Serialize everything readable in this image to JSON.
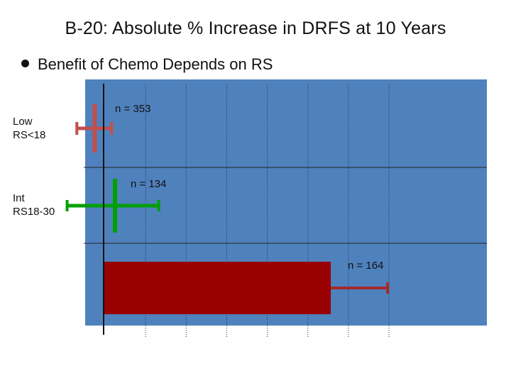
{
  "slide": {
    "title": "B-20: Absolute % Increase in DRFS at 10 Years",
    "bullet": "Benefit of Chemo Depends on RS"
  },
  "chart_data": {
    "type": "bar",
    "orientation": "horizontal",
    "title": "",
    "categories": [
      {
        "line1": "Low",
        "line2": "RS<18"
      },
      {
        "line1": "Int",
        "line2": "RS18-30"
      },
      {
        "line1": "",
        "line2": ""
      }
    ],
    "values": [
      -1.1,
      1.4,
      28.0
    ],
    "ci_low": [
      -3.3,
      -4.5,
      28.0
    ],
    "ci_high": [
      1.0,
      6.8,
      35.0
    ],
    "annotations": [
      "n = 353",
      "n = 134",
      "n = 164"
    ],
    "xlim": [
      -5,
      35
    ],
    "grid": "vertical dotted",
    "colors": {
      "plot_background": "#4f81bd",
      "low": "#c0504d",
      "int": "#00a000",
      "high": "#990000",
      "high_whisker": "#a52a2a"
    }
  }
}
